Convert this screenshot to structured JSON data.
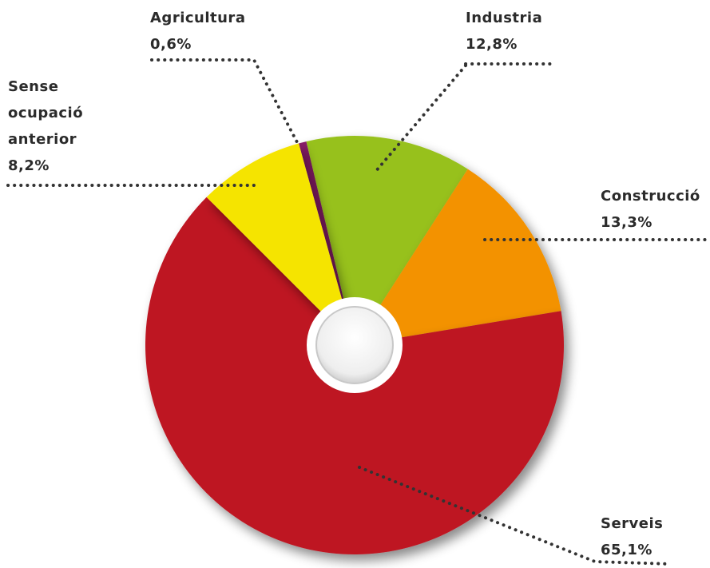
{
  "chart_data": {
    "type": "pie",
    "categories": [
      "Agricultura",
      "Industria",
      "Construcció",
      "Serveis",
      "Sense ocupació anterior"
    ],
    "values": [
      0.6,
      12.8,
      13.3,
      65.1,
      8.2
    ],
    "value_labels": [
      "0,6%",
      "12,8%",
      "13,3%",
      "65,1%",
      "8,2%"
    ],
    "colors": [
      "#8b1a6b",
      "#97c11f",
      "#f39200",
      "#be1622",
      "#f5e400"
    ]
  }
}
